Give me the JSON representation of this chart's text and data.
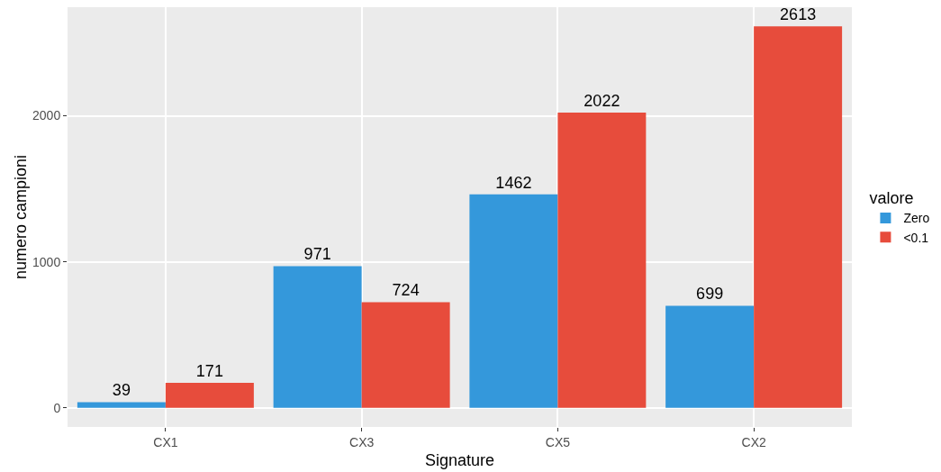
{
  "chart_data": {
    "type": "bar",
    "xlabel": "Signature",
    "ylabel": "numero campioni",
    "legend_title": "valore",
    "categories": [
      "CX1",
      "CX3",
      "CX5",
      "CX2"
    ],
    "series": [
      {
        "name": "Zero",
        "color": "#3498db",
        "values": [
          39,
          971,
          1462,
          699
        ]
      },
      {
        "name": "<0.1",
        "color": "#e74c3c",
        "values": [
          171,
          724,
          2022,
          2613
        ]
      }
    ],
    "ylim": [
      -131,
      2744
    ],
    "yticks": [
      0,
      1000,
      2000
    ],
    "grid": true,
    "legend": "right",
    "data_labels": true
  }
}
